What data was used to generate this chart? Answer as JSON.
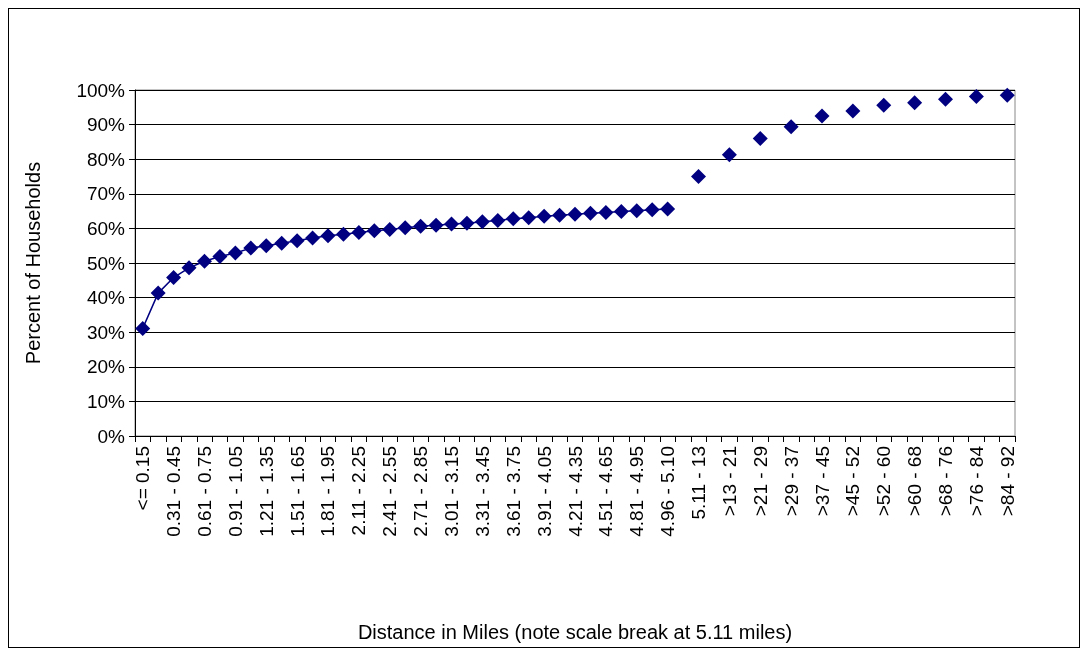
{
  "chart_data": {
    "type": "line",
    "xlabel": "Distance in Miles (note scale break at 5.11 miles)",
    "ylabel": "Percent of Households",
    "categories": [
      "<= 0.15",
      null,
      "0.31 - 0.45",
      null,
      "0.61 - 0.75",
      null,
      "0.91 - 1.05",
      null,
      "1.21 - 1.35",
      null,
      "1.51 - 1.65",
      null,
      "1.81 - 1.95",
      null,
      "2.11 - 2.25",
      null,
      "2.41 - 2.55",
      null,
      "2.71 - 2.85",
      null,
      "3.01 - 3.15",
      null,
      "3.31 - 3.45",
      null,
      "3.61 - 3.75",
      null,
      "3.91 - 4.05",
      null,
      "4.21 - 4.35",
      null,
      "4.51 - 4.65",
      null,
      "4.81 - 4.95",
      null,
      "4.96 - 5.10",
      null,
      "5.11 - 13",
      null,
      ">13 - 21",
      null,
      ">21 - 29",
      null,
      ">29 - 37",
      null,
      ">37 - 45",
      null,
      ">45 - 52",
      null,
      ">52 - 60",
      null,
      ">60 - 68",
      null,
      ">68 - 76",
      null,
      ">76 - 84",
      null,
      ">84 - 92"
    ],
    "series": [
      {
        "color": "#000080",
        "values": [
          31.1,
          41.3,
          45.8,
          48.6,
          50.5,
          51.9,
          52.9,
          54.3,
          55.0,
          55.7,
          56.4,
          57.2,
          57.9,
          58.3,
          58.8,
          59.3,
          59.7,
          60.2,
          60.6,
          60.9,
          61.3,
          61.5,
          61.9,
          62.3,
          62.8,
          63.1,
          63.5,
          63.8,
          64.1,
          64.4,
          64.6,
          64.9,
          65.1,
          65.4,
          65.6,
          null,
          75.0,
          null,
          81.3,
          null,
          86.0,
          null,
          89.4,
          null,
          92.5,
          null,
          93.9,
          null,
          95.6,
          null,
          96.3,
          null,
          97.3,
          null,
          98.1,
          null,
          98.5
        ]
      }
    ],
    "ylim": [
      0,
      100
    ],
    "yticks": [
      {
        "value": 0,
        "label": "0%"
      },
      {
        "value": 10,
        "label": "10%"
      },
      {
        "value": 20,
        "label": "20%"
      },
      {
        "value": 30,
        "label": "30%"
      },
      {
        "value": 40,
        "label": "40%"
      },
      {
        "value": 50,
        "label": "50%"
      },
      {
        "value": 60,
        "label": "60%"
      },
      {
        "value": 70,
        "label": "70%"
      },
      {
        "value": 80,
        "label": "80%"
      },
      {
        "value": 90,
        "label": "90%"
      },
      {
        "value": 100,
        "label": "100%"
      }
    ],
    "grid": "y",
    "marker": "diamond",
    "line_style": "solid"
  }
}
